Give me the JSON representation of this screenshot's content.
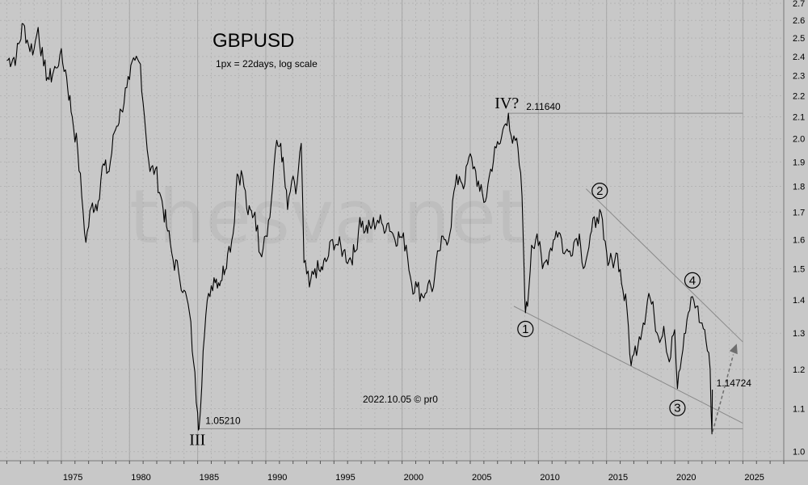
{
  "chart_data": {
    "type": "line",
    "title": "GBPUSD",
    "subtitle": "1px = 22days, log scale",
    "credit": "2022.10.05 © pr0",
    "watermark": "thesva.net",
    "y_scale": "log",
    "ylim": [
      0.98,
      2.72
    ],
    "xlim": [
      1970.5,
      2028.0
    ],
    "y_ticks": [
      "1.0",
      "1.1",
      "1.2",
      "1.3",
      "1.4",
      "1.5",
      "1.6",
      "1.7",
      "1.8",
      "1.9",
      "2.0",
      "2.1",
      "2.2",
      "2.3",
      "2.4",
      "2.5",
      "2.6",
      "2.7"
    ],
    "x_ticks": [
      "1975",
      "1980",
      "1985",
      "1990",
      "1995",
      "2000",
      "2005",
      "2010",
      "2015",
      "2020",
      "2025"
    ],
    "grid": true,
    "series": [
      {
        "points": [
          [
            1971.0,
            2.38
          ],
          [
            1971.7,
            2.4
          ],
          [
            1972.2,
            2.58
          ],
          [
            1972.6,
            2.46
          ],
          [
            1973.0,
            2.44
          ],
          [
            1973.3,
            2.56
          ],
          [
            1973.7,
            2.35
          ],
          [
            1974.1,
            2.28
          ],
          [
            1974.6,
            2.34
          ],
          [
            1974.9,
            2.41
          ],
          [
            1975.3,
            2.33
          ],
          [
            1975.8,
            2.1
          ],
          [
            1976.2,
            1.95
          ],
          [
            1976.5,
            1.76
          ],
          [
            1976.8,
            1.59
          ],
          [
            1977.2,
            1.72
          ],
          [
            1977.7,
            1.74
          ],
          [
            1978.0,
            1.88
          ],
          [
            1978.5,
            1.86
          ],
          [
            1978.9,
            2.03
          ],
          [
            1979.4,
            2.13
          ],
          [
            1979.8,
            2.24
          ],
          [
            1980.0,
            2.28
          ],
          [
            1980.4,
            2.38
          ],
          [
            1980.8,
            2.36
          ],
          [
            1981.1,
            2.1
          ],
          [
            1981.5,
            1.86
          ],
          [
            1981.9,
            1.87
          ],
          [
            1982.3,
            1.76
          ],
          [
            1982.8,
            1.63
          ],
          [
            1983.2,
            1.53
          ],
          [
            1983.6,
            1.49
          ],
          [
            1984.0,
            1.43
          ],
          [
            1984.4,
            1.36
          ],
          [
            1984.7,
            1.22
          ],
          [
            1985.0,
            1.09
          ],
          [
            1985.1,
            1.0521
          ],
          [
            1985.4,
            1.25
          ],
          [
            1985.8,
            1.42
          ],
          [
            1986.2,
            1.47
          ],
          [
            1986.7,
            1.46
          ],
          [
            1987.2,
            1.55
          ],
          [
            1987.6,
            1.62
          ],
          [
            1987.9,
            1.85
          ],
          [
            1988.3,
            1.84
          ],
          [
            1988.7,
            1.69
          ],
          [
            1989.2,
            1.7
          ],
          [
            1989.6,
            1.55
          ],
          [
            1989.9,
            1.61
          ],
          [
            1990.3,
            1.68
          ],
          [
            1990.7,
            1.95
          ],
          [
            1991.1,
            1.98
          ],
          [
            1991.6,
            1.71
          ],
          [
            1991.9,
            1.82
          ],
          [
            1992.2,
            1.77
          ],
          [
            1992.6,
            1.98
          ],
          [
            1992.8,
            1.52
          ],
          [
            1993.2,
            1.44
          ],
          [
            1993.6,
            1.5
          ],
          [
            1994.0,
            1.49
          ],
          [
            1994.5,
            1.53
          ],
          [
            1994.9,
            1.6
          ],
          [
            1995.3,
            1.58
          ],
          [
            1995.7,
            1.56
          ],
          [
            1996.1,
            1.53
          ],
          [
            1996.6,
            1.56
          ],
          [
            1996.9,
            1.68
          ],
          [
            1997.3,
            1.63
          ],
          [
            1997.8,
            1.65
          ],
          [
            1998.2,
            1.67
          ],
          [
            1998.6,
            1.65
          ],
          [
            1999.0,
            1.66
          ],
          [
            1999.4,
            1.61
          ],
          [
            1999.9,
            1.61
          ],
          [
            2000.3,
            1.58
          ],
          [
            2000.7,
            1.45
          ],
          [
            2001.1,
            1.44
          ],
          [
            2001.5,
            1.41
          ],
          [
            2001.9,
            1.45
          ],
          [
            2002.3,
            1.44
          ],
          [
            2002.7,
            1.56
          ],
          [
            2003.1,
            1.6
          ],
          [
            2003.5,
            1.62
          ],
          [
            2003.8,
            1.78
          ],
          [
            2004.2,
            1.84
          ],
          [
            2004.6,
            1.81
          ],
          [
            2004.9,
            1.92
          ],
          [
            2005.3,
            1.88
          ],
          [
            2005.7,
            1.78
          ],
          [
            2006.1,
            1.74
          ],
          [
            2006.5,
            1.87
          ],
          [
            2006.9,
            1.96
          ],
          [
            2007.2,
            1.98
          ],
          [
            2007.5,
            2.06
          ],
          [
            2007.8,
            2.1164
          ],
          [
            2008.1,
            1.98
          ],
          [
            2008.5,
            1.96
          ],
          [
            2008.8,
            1.76
          ],
          [
            2008.95,
            1.5
          ],
          [
            2009.05,
            1.36
          ],
          [
            2009.2,
            1.38
          ],
          [
            2009.5,
            1.58
          ],
          [
            2009.9,
            1.62
          ],
          [
            2010.3,
            1.5
          ],
          [
            2010.6,
            1.53
          ],
          [
            2010.9,
            1.57
          ],
          [
            2011.3,
            1.63
          ],
          [
            2011.6,
            1.62
          ],
          [
            2011.9,
            1.55
          ],
          [
            2012.3,
            1.56
          ],
          [
            2012.7,
            1.6
          ],
          [
            2013.0,
            1.62
          ],
          [
            2013.2,
            1.52
          ],
          [
            2013.6,
            1.55
          ],
          [
            2013.9,
            1.63
          ],
          [
            2014.3,
            1.68
          ],
          [
            2014.5,
            1.71
          ],
          [
            2014.8,
            1.6
          ],
          [
            2015.1,
            1.51
          ],
          [
            2015.4,
            1.53
          ],
          [
            2015.8,
            1.55
          ],
          [
            2016.2,
            1.43
          ],
          [
            2016.5,
            1.37
          ],
          [
            2016.8,
            1.21
          ],
          [
            2017.0,
            1.24
          ],
          [
            2017.4,
            1.29
          ],
          [
            2017.7,
            1.33
          ],
          [
            2018.1,
            1.42
          ],
          [
            2018.5,
            1.35
          ],
          [
            2018.8,
            1.29
          ],
          [
            2019.2,
            1.32
          ],
          [
            2019.6,
            1.22
          ],
          [
            2019.8,
            1.29
          ],
          [
            2020.0,
            1.31
          ],
          [
            2020.2,
            1.15
          ],
          [
            2020.5,
            1.23
          ],
          [
            2020.8,
            1.3
          ],
          [
            2021.0,
            1.36
          ],
          [
            2021.3,
            1.41
          ],
          [
            2021.6,
            1.38
          ],
          [
            2021.9,
            1.33
          ],
          [
            2022.2,
            1.31
          ],
          [
            2022.4,
            1.25
          ],
          [
            2022.6,
            1.2
          ],
          [
            2022.73,
            1.04
          ],
          [
            2022.76,
            1.14724
          ]
        ]
      }
    ],
    "annotations": {
      "level_1": "2.11640",
      "level_2": "1.05210",
      "level_3": "1.14724",
      "wave_III": "III",
      "wave_IV": "IV?",
      "wave_1": "1",
      "wave_2": "2",
      "wave_3": "3",
      "wave_4": "4"
    },
    "annotation_values": {
      "high": 2.1164,
      "low": 1.0521,
      "current": 1.14724,
      "wave_1": [
        2009.05,
        1.36
      ],
      "wave_2": [
        2014.5,
        1.71
      ],
      "wave_3": [
        2020.2,
        1.15
      ],
      "wave_4": [
        2021.3,
        1.41
      ]
    },
    "colors": {
      "background": "#c8c8c8",
      "price": "#000000",
      "grid": "#b4b4b4",
      "trend_lines": "#8a8a8a",
      "projection": "#6e6e6e"
    }
  }
}
